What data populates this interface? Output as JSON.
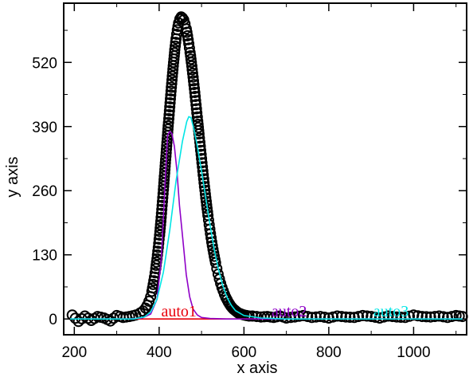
{
  "chart_data": {
    "type": "scatter",
    "title": "",
    "xlabel": "x axis",
    "ylabel": "y axis",
    "xlim": [
      175,
      1125
    ],
    "ylim": [
      -32,
      640
    ],
    "xticks": [
      200,
      400,
      600,
      800,
      1000
    ],
    "yticks": [
      0,
      130,
      260,
      390,
      520
    ],
    "grid": false,
    "legend": "none",
    "scatter": {
      "color": "#000000",
      "marker": "open-circle",
      "x": [
        195,
        210,
        225,
        240,
        255,
        270,
        285,
        300,
        315,
        330,
        345,
        355,
        362,
        368,
        372,
        376,
        380,
        383,
        386,
        389,
        392,
        395,
        398,
        401,
        404,
        407,
        410,
        413,
        416,
        419,
        422,
        425,
        428,
        431,
        434,
        437,
        440,
        443,
        446,
        449,
        452,
        455,
        458,
        461,
        464,
        467,
        470,
        473,
        476,
        479,
        482,
        485,
        488,
        491,
        494,
        497,
        500,
        503,
        506,
        509,
        512,
        515,
        518,
        521,
        524,
        527,
        530,
        533,
        536,
        539,
        542,
        545,
        548,
        551,
        554,
        557,
        560,
        563,
        566,
        569,
        572,
        575,
        578,
        581,
        584,
        587,
        590,
        593,
        596,
        600,
        606,
        612,
        620,
        630,
        640,
        655,
        670,
        685,
        700,
        720,
        740,
        760,
        780,
        800,
        820,
        840,
        860,
        880,
        900,
        920,
        940,
        960,
        980,
        1000,
        1020,
        1040,
        1060,
        1080,
        1100,
        1115
      ],
      "y": [
        8,
        -5,
        6,
        -3,
        5,
        2,
        -4,
        7,
        3,
        5,
        8,
        12,
        16,
        22,
        28,
        36,
        45,
        56,
        70,
        85,
        102,
        122,
        145,
        170,
        198,
        230,
        262,
        296,
        330,
        365,
        398,
        430,
        462,
        492,
        520,
        546,
        568,
        586,
        600,
        608,
        612,
        610,
        606,
        598,
        588,
        574,
        558,
        540,
        520,
        498,
        475,
        451,
        426,
        401,
        375,
        350,
        325,
        300,
        276,
        253,
        231,
        210,
        191,
        173,
        156,
        141,
        127,
        114,
        102,
        91,
        81,
        72,
        64,
        57,
        50,
        44,
        39,
        34,
        30,
        26,
        23,
        20,
        18,
        16,
        14,
        12,
        11,
        10,
        9,
        8,
        7,
        6,
        6,
        5,
        4,
        5,
        3,
        6,
        2,
        4,
        7,
        3,
        5,
        2,
        6,
        4,
        3,
        7,
        5,
        2,
        6,
        4,
        3,
        8,
        5,
        4,
        6,
        3,
        7,
        5
      ]
    },
    "series": [
      {
        "name": "auto1",
        "color": "#e8000b",
        "x": [
          190,
          1115
        ],
        "y": [
          0,
          0
        ]
      },
      {
        "name": "auto2",
        "color": "#8f00c7",
        "x": [
          190,
          330,
          360,
          380,
          395,
          405,
          413,
          420,
          425,
          430,
          436,
          442,
          448,
          456,
          464,
          472,
          480,
          490,
          500,
          520,
          560,
          600,
          1115
        ],
        "y": [
          0,
          0,
          2,
          10,
          40,
          120,
          260,
          372,
          380,
          376,
          350,
          300,
          230,
          160,
          90,
          45,
          20,
          8,
          3,
          1,
          0,
          0,
          0
        ]
      },
      {
        "name": "auto3",
        "color": "#00e5e5",
        "x": [
          190,
          340,
          365,
          380,
          395,
          410,
          425,
          440,
          455,
          465,
          470,
          475,
          482,
          490,
          500,
          510,
          520,
          530,
          540,
          550,
          560,
          570,
          580,
          600,
          640,
          700,
          1115
        ],
        "y": [
          0,
          0,
          4,
          14,
          40,
          95,
          180,
          280,
          360,
          400,
          410,
          408,
          385,
          350,
          300,
          245,
          190,
          140,
          100,
          68,
          44,
          28,
          17,
          7,
          2,
          0,
          0
        ]
      }
    ],
    "annotations": [
      {
        "text": "auto1",
        "color": "#e8000b",
        "x": 405,
        "y": 5
      },
      {
        "text": "auto2",
        "color": "#8f00c7",
        "x": 665,
        "y": 5
      },
      {
        "text": "auto3",
        "color": "#00e5e5",
        "x": 905,
        "y": 5
      }
    ]
  }
}
